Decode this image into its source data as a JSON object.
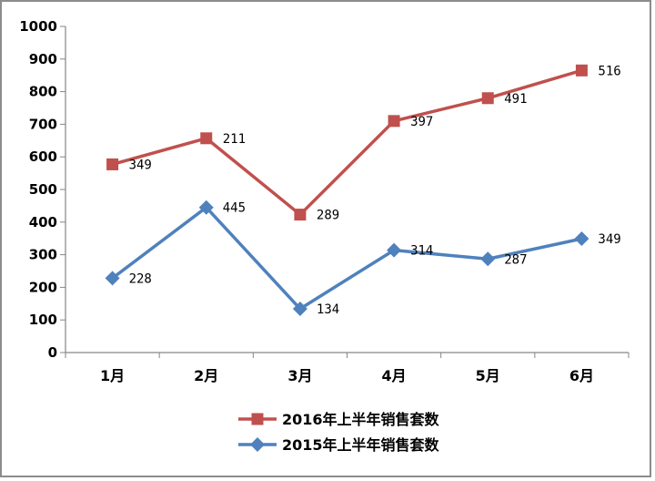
{
  "chart_data": {
    "type": "line",
    "title": "",
    "xlabel": "",
    "ylabel": "",
    "categories": [
      "1月",
      "2月",
      "3月",
      "4月",
      "5月",
      "6月"
    ],
    "ylim": [
      0,
      1000
    ],
    "yticks": [
      "0",
      "100",
      "200",
      "300",
      "400",
      "500",
      "600",
      "700",
      "800",
      "900",
      "1000"
    ],
    "grid": false,
    "legend_position": "bottom",
    "series": [
      {
        "name": "2016年上半年销售套数",
        "color": "#c0504d",
        "marker": "square",
        "values": [
          577,
          657,
          423,
          710,
          780,
          865
        ],
        "labels": [
          "349",
          "211",
          "289",
          "397",
          "491",
          "516"
        ]
      },
      {
        "name": "2015年上半年销售套数",
        "color": "#4f81bd",
        "marker": "diamond",
        "values": [
          228,
          445,
          134,
          314,
          287,
          349
        ],
        "labels": [
          "228",
          "445",
          "134",
          "314",
          "287",
          "349"
        ]
      }
    ]
  }
}
